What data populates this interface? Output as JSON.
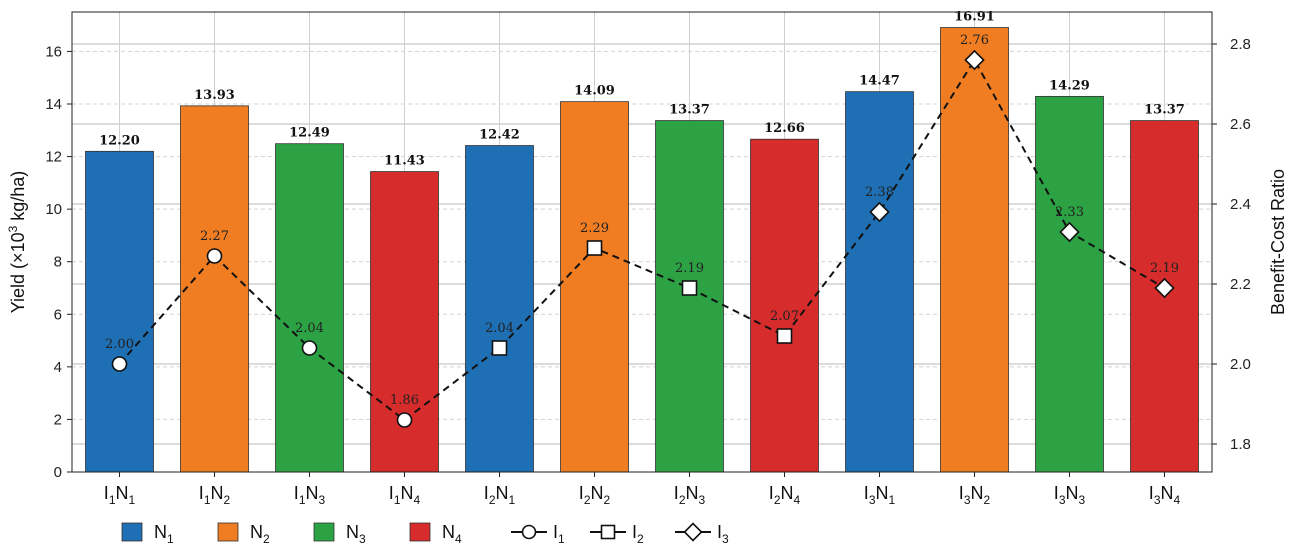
{
  "chart_data": {
    "type": "bar",
    "categories": [
      {
        "main": "I",
        "s1": "1",
        "mid": "N",
        "s2": "1"
      },
      {
        "main": "I",
        "s1": "1",
        "mid": "N",
        "s2": "2"
      },
      {
        "main": "I",
        "s1": "1",
        "mid": "N",
        "s2": "3"
      },
      {
        "main": "I",
        "s1": "1",
        "mid": "N",
        "s2": "4"
      },
      {
        "main": "I",
        "s1": "2",
        "mid": "N",
        "s2": "1"
      },
      {
        "main": "I",
        "s1": "2",
        "mid": "N",
        "s2": "2"
      },
      {
        "main": "I",
        "s1": "2",
        "mid": "N",
        "s2": "3"
      },
      {
        "main": "I",
        "s1": "2",
        "mid": "N",
        "s2": "4"
      },
      {
        "main": "I",
        "s1": "3",
        "mid": "N",
        "s2": "1"
      },
      {
        "main": "I",
        "s1": "3",
        "mid": "N",
        "s2": "2"
      },
      {
        "main": "I",
        "s1": "3",
        "mid": "N",
        "s2": "3"
      },
      {
        "main": "I",
        "s1": "3",
        "mid": "N",
        "s2": "4"
      }
    ],
    "yield": [
      12.2,
      13.93,
      12.49,
      11.43,
      12.42,
      14.09,
      13.37,
      12.66,
      14.47,
      16.91,
      14.29,
      13.37
    ],
    "yield_labels": [
      "12.20",
      "13.93",
      "12.49",
      "11.43",
      "12.42",
      "14.09",
      "13.37",
      "12.66",
      "14.47",
      "16.91",
      "14.29",
      "13.37"
    ],
    "bar_colors": [
      "#1f6fb4",
      "#f07d22",
      "#2ca244",
      "#d62c2b",
      "#1f6fb4",
      "#f07d22",
      "#2ca244",
      "#d62c2b",
      "#1f6fb4",
      "#f07d22",
      "#2ca244",
      "#d62c2b"
    ],
    "bcr": [
      2.0,
      2.27,
      2.04,
      1.86,
      2.04,
      2.29,
      2.19,
      2.07,
      2.38,
      2.76,
      2.33,
      2.19
    ],
    "bcr_labels": [
      "2.00",
      "2.27",
      "2.04",
      "1.86",
      "2.04",
      "2.29",
      "2.19",
      "2.07",
      "2.38",
      "2.76",
      "2.33",
      "2.19"
    ],
    "bcr_markers": [
      "circle",
      "circle",
      "circle",
      "circle",
      "square",
      "square",
      "square",
      "square",
      "diamond",
      "diamond",
      "diamond",
      "diamond"
    ],
    "y_left": {
      "label_main": "Yield (×10",
      "label_sup": "3",
      "label_tail": " kg/ha)",
      "min": 0,
      "max": 17.5,
      "ticks": [
        0,
        2,
        4,
        6,
        8,
        10,
        12,
        14,
        16
      ]
    },
    "y_right": {
      "label": "Benefit-Cost Ratio",
      "min": 1.73,
      "max": 2.88,
      "ticks": [
        "1.8",
        "2.0",
        "2.2",
        "2.4",
        "2.6",
        "2.8"
      ]
    },
    "grid": true,
    "legend": {
      "placement": "bottom-left",
      "entries": [
        {
          "kind": "patch",
          "color": "#1f6fb4",
          "main": "N",
          "sub": "1"
        },
        {
          "kind": "patch",
          "color": "#f07d22",
          "main": "N",
          "sub": "2"
        },
        {
          "kind": "patch",
          "color": "#2ca244",
          "main": "N",
          "sub": "3"
        },
        {
          "kind": "patch",
          "color": "#d62c2b",
          "main": "N",
          "sub": "4"
        },
        {
          "kind": "line",
          "marker": "circle",
          "main": "I",
          "sub": "1"
        },
        {
          "kind": "line",
          "marker": "square",
          "main": "I",
          "sub": "2"
        },
        {
          "kind": "line",
          "marker": "diamond",
          "main": "I",
          "sub": "3"
        }
      ]
    }
  }
}
